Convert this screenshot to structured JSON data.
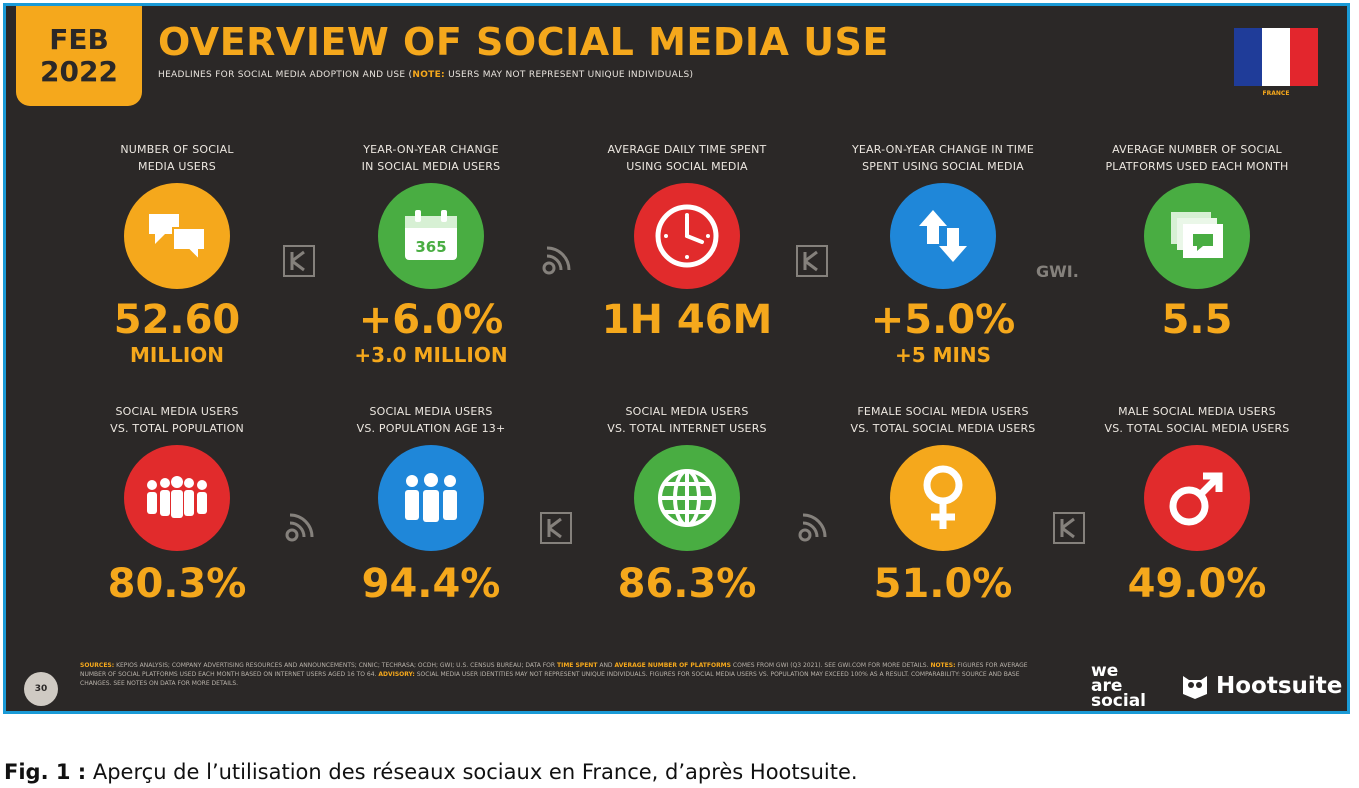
{
  "header": {
    "month": "FEB",
    "year": "2022",
    "title": "OVERVIEW OF SOCIAL MEDIA USE",
    "subtitle_main": "HEADLINES FOR SOCIAL MEDIA ADOPTION AND USE (",
    "subtitle_note_label": "NOTE:",
    "subtitle_rest": " USERS MAY NOT REPRESENT UNIQUE INDIVIDUALS)",
    "country": "FRANCE"
  },
  "flag": {
    "colors": [
      "#1f3c99",
      "#ffffff",
      "#e3262d"
    ]
  },
  "metrics_row1": [
    {
      "label_line1": "NUMBER OF SOCIAL",
      "label_line2": "MEDIA USERS",
      "value": "52.60",
      "sub": "MILLION",
      "icon": "speech-bubbles-icon",
      "color": "#f5a81c"
    },
    {
      "label_line1": "YEAR-ON-YEAR CHANGE",
      "label_line2": "IN SOCIAL MEDIA USERS",
      "value": "+6.0%",
      "sub": "+3.0 MILLION",
      "icon": "calendar-365-icon",
      "color": "#49ad42"
    },
    {
      "label_line1": "AVERAGE DAILY TIME SPENT",
      "label_line2": "USING SOCIAL MEDIA",
      "value": "1H 46M",
      "sub": "",
      "icon": "clock-icon",
      "color": "#e12b2c"
    },
    {
      "label_line1": "YEAR-ON-YEAR CHANGE IN TIME",
      "label_line2": "SPENT USING SOCIAL MEDIA",
      "value": "+5.0%",
      "sub": "+5 MINS",
      "icon": "up-down-arrows-icon",
      "color": "#1f87d9"
    },
    {
      "label_line1": "AVERAGE NUMBER OF SOCIAL",
      "label_line2": "PLATFORMS USED EACH MONTH",
      "value": "5.5",
      "sub": "",
      "icon": "stacked-windows-icon",
      "color": "#49ad42"
    }
  ],
  "metrics_row2": [
    {
      "label_line1": "SOCIAL MEDIA USERS",
      "label_line2": "vs. TOTAL POPULATION",
      "value": "80.3%",
      "icon": "crowd-icon",
      "color": "#e12b2c"
    },
    {
      "label_line1": "SOCIAL MEDIA USERS",
      "label_line2": "vs. POPULATION AGE 13+",
      "value": "94.4%",
      "icon": "adults-icon",
      "color": "#1f87d9"
    },
    {
      "label_line1": "SOCIAL MEDIA USERS",
      "label_line2": "vs. TOTAL INTERNET USERS",
      "value": "86.3%",
      "icon": "globe-icon",
      "color": "#49ad42"
    },
    {
      "label_line1": "FEMALE SOCIAL MEDIA USERS",
      "label_line2": "vs. TOTAL SOCIAL MEDIA USERS",
      "value": "51.0%",
      "icon": "female-symbol-icon",
      "color": "#f5a81c"
    },
    {
      "label_line1": "MALE SOCIAL MEDIA USERS",
      "label_line2": "vs. TOTAL SOCIAL MEDIA USERS",
      "value": "49.0%",
      "icon": "male-symbol-icon",
      "color": "#e12b2c"
    }
  ],
  "separators": {
    "gwi": "GWI."
  },
  "footer": {
    "page_number": "30",
    "sources_label": "SOURCES:",
    "sources_text": "KEPIOS ANALYSIS; COMPANY ADVERTISING RESOURCES AND ANNOUNCEMENTS; CNNIC; TECHRASA; OCDH; GWI; U.S. CENSUS BUREAU; DATA FOR",
    "sources_hl1": "TIME SPENT",
    "sources_mid": "AND",
    "sources_hl2": "AVERAGE NUMBER OF PLATFORMS",
    "sources_text2": "COMES FROM GWI (Q3 2021). SEE GWI.COM FOR MORE DETAILS.",
    "notes_label": "NOTES:",
    "notes_text": "FIGURES FOR AVERAGE NUMBER OF SOCIAL PLATFORMS USED EACH MONTH BASED ON INTERNET USERS AGED 16 TO 64.",
    "advisory_label": "ADVISORY:",
    "advisory_text": "SOCIAL MEDIA USER IDENTITIES MAY NOT REPRESENT UNIQUE INDIVIDUALS. FIGURES FOR SOCIAL MEDIA USERS VS. POPULATION MAY EXCEED 100% AS A RESULT. COMPARABILITY: SOURCE AND BASE CHANGES. SEE NOTES ON DATA FOR MORE DETAILS.",
    "brand1_line1": "we",
    "brand1_line2": "are",
    "brand1_line3": "social",
    "brand2": "Hootsuite"
  },
  "caption": {
    "label": "Fig. 1 :",
    "text": " Aperçu de l’utilisation des réseaux sociaux en France, d’après Hootsuite."
  }
}
